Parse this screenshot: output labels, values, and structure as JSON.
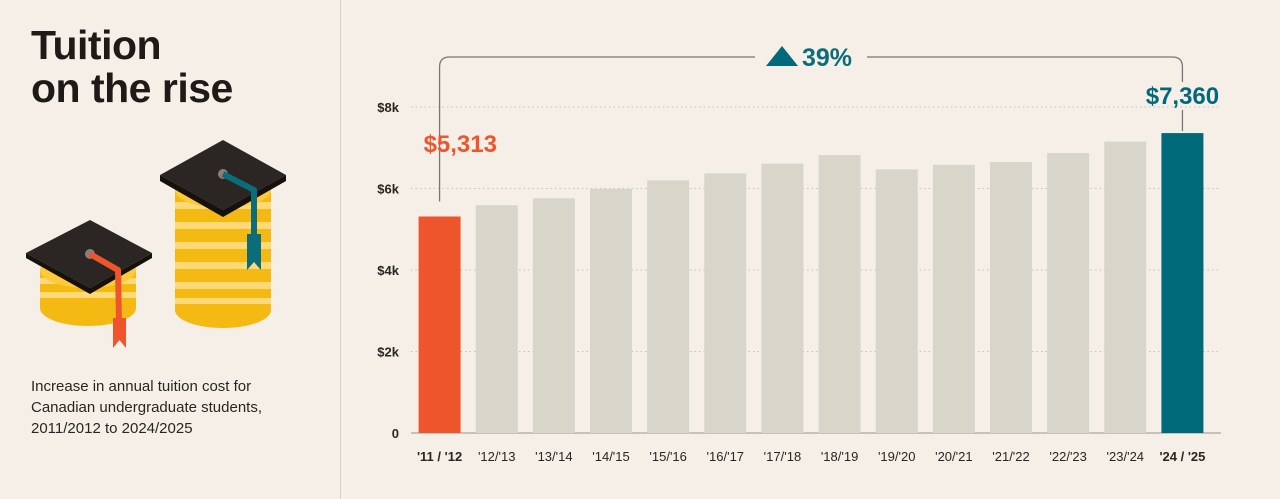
{
  "title": {
    "line1": "Tuition",
    "line2": "on the rise"
  },
  "caption": {
    "line1": "Increase in annual tuition cost for",
    "line2": "Canadian undergraduate students,",
    "line3": "2011/2012 to 2024/2025"
  },
  "colors": {
    "background": "#f6efe8",
    "bar_default": "#d8d5ca",
    "bar_start": "#ee552c",
    "bar_end": "#006a7a",
    "grid": "#c9c1b8",
    "bracket": "#7d7670"
  },
  "chart_data": {
    "type": "bar",
    "title": "Tuition on the rise",
    "xlabel": "",
    "ylabel": "",
    "categories": [
      "'11 / '12",
      "'12/'13",
      "'13/'14",
      "'14/'15",
      "'15/'16",
      "'16/'17",
      "'17/'18",
      "'18/'19",
      "'19/'20",
      "'20/'21",
      "'21/'22",
      "'22/'23",
      "'23/'24",
      "'24 / '25"
    ],
    "values": [
      5313,
      5590,
      5760,
      5990,
      6200,
      6370,
      6610,
      6820,
      6470,
      6580,
      6650,
      6870,
      7150,
      7360
    ],
    "ylim": [
      0,
      8000
    ],
    "y_ticks": [
      0,
      2000,
      4000,
      6000,
      8000
    ],
    "y_tick_labels": [
      "0",
      "$2k",
      "$4k",
      "$6k",
      "$8k"
    ],
    "grid": true,
    "annotations": {
      "start_value": "$5,313",
      "end_value": "$7,360",
      "change": "39%"
    }
  }
}
